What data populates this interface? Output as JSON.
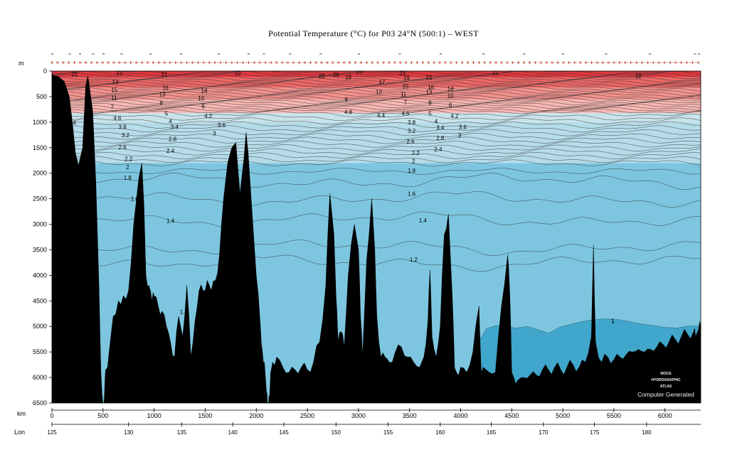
{
  "chart_data": {
    "type": "heatmap",
    "title": "Potential Temperature (°C) for P03 24°N (500:1) – WEST",
    "y_unit_label": "m",
    "x_unit_label": "km",
    "lon_axis_label": "Lon",
    "ylim": [
      6500,
      0
    ],
    "xlim": [
      0,
      6350
    ],
    "y_ticks": [
      0,
      500,
      1000,
      1500,
      2000,
      2500,
      3000,
      3500,
      4000,
      4500,
      5000,
      5500,
      6000,
      6500
    ],
    "x_ticks": [
      0,
      500,
      1000,
      1500,
      2000,
      2500,
      3000,
      3500,
      4000,
      4500,
      5000,
      5500,
      6000
    ],
    "lon_ticks": [
      {
        "lon": "125",
        "km": 0
      },
      {
        "lon": "130",
        "km": 750
      },
      {
        "lon": "135",
        "km": 1270
      },
      {
        "lon": "140",
        "km": 1770
      },
      {
        "lon": "145",
        "km": 2270
      },
      {
        "lon": "150",
        "km": 2780
      },
      {
        "lon": "155",
        "km": 3290
      },
      {
        "lon": "160",
        "km": 3800
      },
      {
        "lon": "165",
        "km": 4300
      },
      {
        "lon": "170",
        "km": 4810
      },
      {
        "lon": "175",
        "km": 5310
      },
      {
        "lon": "180",
        "km": 5820
      }
    ],
    "stations": [
      {
        "label": "3",
        "km": 0
      },
      {
        "label": "3",
        "km": 170
      },
      {
        "label": "3",
        "km": 270
      },
      {
        "label": "3",
        "km": 400
      },
      {
        "label": "3",
        "km": 500
      },
      {
        "label": "3",
        "km": 680
      },
      {
        "label": "3",
        "km": 960
      },
      {
        "label": "3",
        "km": 1260
      },
      {
        "label": "3",
        "km": 1630
      },
      {
        "label": "3",
        "km": 1920
      },
      {
        "label": "3",
        "km": 2070
      },
      {
        "label": "3",
        "km": 2330
      },
      {
        "label": "3",
        "km": 2630
      },
      {
        "label": "3",
        "km": 3000
      },
      {
        "label": "3",
        "km": 3400
      },
      {
        "label": "3",
        "km": 3800
      },
      {
        "label": "3",
        "km": 4220
      },
      {
        "label": "3",
        "km": 4620
      },
      {
        "label": "3",
        "km": 5000
      },
      {
        "label": "3",
        "km": 5420
      },
      {
        "label": "3",
        "km": 5850
      },
      {
        "label": "3",
        "km": 6290
      },
      {
        "label": "3",
        "km": 6330
      }
    ],
    "color_bands": [
      {
        "from_depth": 0,
        "to_depth": 120,
        "color": "#e0373e"
      },
      {
        "from_depth": 120,
        "to_depth": 320,
        "color": "#ec6766"
      },
      {
        "from_depth": 320,
        "to_depth": 560,
        "color": "#f3928e"
      },
      {
        "from_depth": 560,
        "to_depth": 820,
        "color": "#f8b7b2"
      },
      {
        "from_depth": 820,
        "to_depth": 1000,
        "color": "#c9e3ec"
      },
      {
        "from_depth": 1000,
        "to_depth": 1800,
        "color": "#b6dcea"
      },
      {
        "from_depth": 1800,
        "to_depth": 6500,
        "color": "#7ec6e0"
      }
    ],
    "deep_cold_water": {
      "label": "1",
      "min_depth": 4850,
      "color": "#40a6cb"
    },
    "contour_labels": [
      {
        "text": "21",
        "km": 220,
        "depth": 60
      },
      {
        "text": "21",
        "km": 660,
        "depth": 30
      },
      {
        "text": "21",
        "km": 1100,
        "depth": 60
      },
      {
        "text": "13",
        "km": 620,
        "depth": 210
      },
      {
        "text": "15",
        "km": 610,
        "depth": 370
      },
      {
        "text": "11",
        "km": 610,
        "depth": 520
      },
      {
        "text": "7",
        "km": 590,
        "depth": 700
      },
      {
        "text": "4.6",
        "km": 640,
        "depth": 920
      },
      {
        "text": "3.8",
        "km": 690,
        "depth": 1090
      },
      {
        "text": "3.2",
        "km": 720,
        "depth": 1250
      },
      {
        "text": "2.6",
        "km": 690,
        "depth": 1490
      },
      {
        "text": "2.2",
        "km": 750,
        "depth": 1720
      },
      {
        "text": "2",
        "km": 740,
        "depth": 1880
      },
      {
        "text": "1.8",
        "km": 740,
        "depth": 2090
      },
      {
        "text": "1.6",
        "km": 810,
        "depth": 2500
      },
      {
        "text": "1.4",
        "km": 1160,
        "depth": 2930
      },
      {
        "text": "1.2",
        "km": 1290,
        "depth": 4710
      },
      {
        "text": "16",
        "km": 1110,
        "depth": 330
      },
      {
        "text": "13",
        "km": 1080,
        "depth": 450
      },
      {
        "text": "8",
        "km": 1070,
        "depth": 620
      },
      {
        "text": "5",
        "km": 1120,
        "depth": 830
      },
      {
        "text": "4",
        "km": 1160,
        "depth": 980
      },
      {
        "text": "3.4",
        "km": 1200,
        "depth": 1090
      },
      {
        "text": "2.8",
        "km": 1180,
        "depth": 1330
      },
      {
        "text": "2.4",
        "km": 1160,
        "depth": 1560
      },
      {
        "text": "14",
        "km": 1490,
        "depth": 380
      },
      {
        "text": "10",
        "km": 1460,
        "depth": 530
      },
      {
        "text": "6",
        "km": 1480,
        "depth": 690
      },
      {
        "text": "4.2",
        "km": 1530,
        "depth": 880
      },
      {
        "text": "3.6",
        "km": 1660,
        "depth": 1060
      },
      {
        "text": "3",
        "km": 1590,
        "depth": 1220
      },
      {
        "text": "22",
        "km": 1820,
        "depth": 40
      },
      {
        "text": "22",
        "km": 2640,
        "depth": 100
      },
      {
        "text": "20",
        "km": 2780,
        "depth": 70
      },
      {
        "text": "19",
        "km": 2900,
        "depth": 120
      },
      {
        "text": "24",
        "km": 3010,
        "depth": 10
      },
      {
        "text": "9",
        "km": 2880,
        "depth": 560
      },
      {
        "text": "4.8",
        "km": 2900,
        "depth": 800
      },
      {
        "text": "4.4",
        "km": 3220,
        "depth": 860
      },
      {
        "text": "17",
        "km": 3230,
        "depth": 210
      },
      {
        "text": "12",
        "km": 3200,
        "depth": 410
      },
      {
        "text": "23",
        "km": 3430,
        "depth": 40
      },
      {
        "text": "19",
        "km": 3470,
        "depth": 130
      },
      {
        "text": "15",
        "km": 3460,
        "depth": 300
      },
      {
        "text": "11",
        "km": 3440,
        "depth": 450
      },
      {
        "text": "7",
        "km": 3460,
        "depth": 610
      },
      {
        "text": "4.6",
        "km": 3460,
        "depth": 830
      },
      {
        "text": "3.8",
        "km": 3520,
        "depth": 1000
      },
      {
        "text": "3.2",
        "km": 3520,
        "depth": 1170
      },
      {
        "text": "2.6",
        "km": 3510,
        "depth": 1380
      },
      {
        "text": "2.2",
        "km": 3560,
        "depth": 1600
      },
      {
        "text": "2",
        "km": 3540,
        "depth": 1760
      },
      {
        "text": "1.8",
        "km": 3520,
        "depth": 1950
      },
      {
        "text": "1.6",
        "km": 3520,
        "depth": 2400
      },
      {
        "text": "1.4",
        "km": 3630,
        "depth": 2920
      },
      {
        "text": "1.2",
        "km": 3540,
        "depth": 3690
      },
      {
        "text": "21",
        "km": 3690,
        "depth": 120
      },
      {
        "text": "16",
        "km": 3710,
        "depth": 320
      },
      {
        "text": "13",
        "km": 3690,
        "depth": 410
      },
      {
        "text": "8",
        "km": 3700,
        "depth": 620
      },
      {
        "text": "5",
        "km": 3700,
        "depth": 830
      },
      {
        "text": "4",
        "km": 3760,
        "depth": 980
      },
      {
        "text": "3.4",
        "km": 3800,
        "depth": 1110
      },
      {
        "text": "2.8",
        "km": 3800,
        "depth": 1310
      },
      {
        "text": "2.4",
        "km": 3780,
        "depth": 1530
      },
      {
        "text": "14",
        "km": 3900,
        "depth": 340
      },
      {
        "text": "10",
        "km": 3900,
        "depth": 480
      },
      {
        "text": "6",
        "km": 3900,
        "depth": 660
      },
      {
        "text": "4.2",
        "km": 3940,
        "depth": 880
      },
      {
        "text": "3.6",
        "km": 4020,
        "depth": 1090
      },
      {
        "text": "3",
        "km": 3990,
        "depth": 1250
      },
      {
        "text": "22",
        "km": 4340,
        "depth": 30
      },
      {
        "text": "22",
        "km": 5740,
        "depth": 90
      },
      {
        "text": "1",
        "km": 5490,
        "depth": 4890
      },
      {
        "text": "4",
        "km": 220,
        "depth": 1010
      }
    ]
  },
  "watermark": {
    "line1": "WOCE",
    "line2": "HYDROGRAPHIC",
    "line3": "ATLAS",
    "line4": "Computer Generated"
  }
}
